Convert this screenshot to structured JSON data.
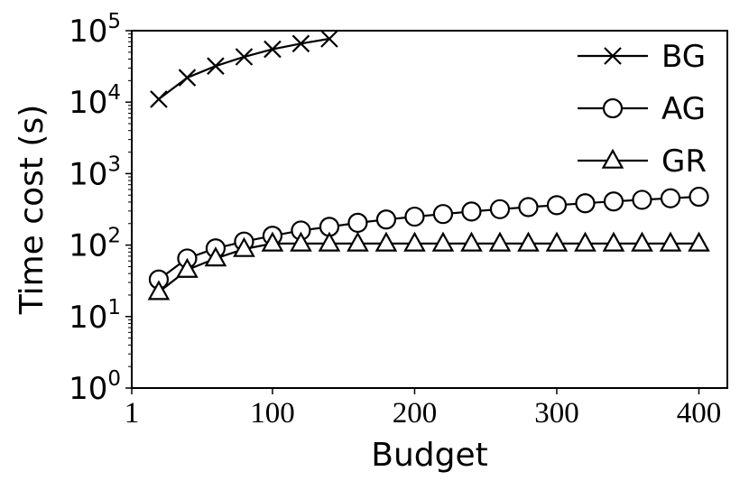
{
  "chart_data": {
    "type": "line",
    "xlabel": "Budget",
    "ylabel": "Time cost (s)",
    "y_scale": "log",
    "xlim": [
      1,
      420
    ],
    "ylim": [
      1,
      100000
    ],
    "x_ticks": [
      {
        "value": 1,
        "label": "1"
      },
      {
        "value": 100,
        "label": "100"
      },
      {
        "value": 200,
        "label": "200"
      },
      {
        "value": 300,
        "label": "300"
      },
      {
        "value": 400,
        "label": "400"
      }
    ],
    "y_ticks": [
      {
        "value": 1,
        "base": "10",
        "exp": "0"
      },
      {
        "value": 10,
        "base": "10",
        "exp": "1"
      },
      {
        "value": 100,
        "base": "10",
        "exp": "2"
      },
      {
        "value": 1000,
        "base": "10",
        "exp": "3"
      },
      {
        "value": 10000,
        "base": "10",
        "exp": "4"
      },
      {
        "value": 100000,
        "base": "10",
        "exp": "5"
      }
    ],
    "grid": false,
    "legend_position": "top-right",
    "series": [
      {
        "name": "BG",
        "marker": "x",
        "x": [
          20,
          40,
          60,
          80,
          100,
          120,
          140
        ],
        "y": [
          11000,
          22000,
          32000,
          43000,
          55000,
          66000,
          77000
        ]
      },
      {
        "name": "AG",
        "marker": "circle",
        "x": [
          20,
          40,
          60,
          80,
          100,
          120,
          140,
          160,
          180,
          200,
          220,
          240,
          260,
          280,
          300,
          320,
          340,
          360,
          380,
          400
        ],
        "y": [
          33,
          65,
          90,
          112,
          135,
          160,
          180,
          205,
          228,
          250,
          272,
          295,
          318,
          340,
          362,
          385,
          408,
          430,
          452,
          475
        ]
      },
      {
        "name": "GR",
        "marker": "triangle",
        "x": [
          20,
          40,
          60,
          80,
          100,
          120,
          140,
          160,
          180,
          200,
          220,
          240,
          260,
          280,
          300,
          320,
          340,
          360,
          380,
          400
        ],
        "y": [
          22,
          45,
          65,
          88,
          105,
          105,
          105,
          105,
          105,
          105,
          105,
          105,
          105,
          105,
          105,
          105,
          105,
          105,
          105,
          105
        ]
      }
    ]
  }
}
